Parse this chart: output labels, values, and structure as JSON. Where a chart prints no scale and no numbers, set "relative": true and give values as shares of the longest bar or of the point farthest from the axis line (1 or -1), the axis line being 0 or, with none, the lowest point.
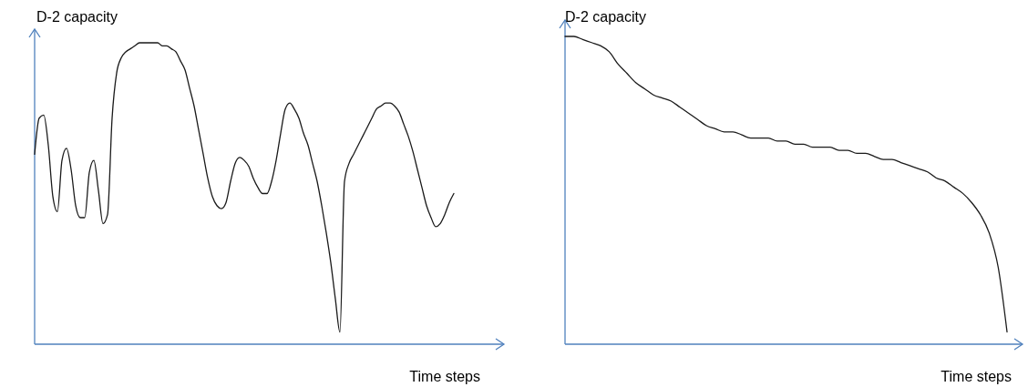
{
  "chart_data": [
    {
      "type": "line",
      "ylabel": "D-2 capacity",
      "xlabel": "Time steps",
      "relative": true,
      "categories": [
        null,
        null,
        null,
        null,
        null,
        null,
        null,
        null,
        null,
        null,
        null,
        null,
        null,
        null,
        null,
        null,
        null,
        null,
        null,
        null,
        null,
        null,
        null,
        null,
        null,
        null,
        null,
        null,
        null,
        null,
        null,
        null,
        null,
        null,
        null,
        null,
        null,
        null,
        null,
        null,
        null,
        null,
        null,
        null,
        null,
        null,
        null,
        null,
        null,
        null,
        null,
        null,
        null,
        null,
        null,
        null,
        null,
        null,
        null,
        null,
        null,
        null,
        null,
        null,
        null,
        null,
        null,
        null,
        null,
        null,
        null,
        null,
        null,
        null,
        null,
        null,
        null,
        null,
        null,
        null,
        null,
        null,
        null,
        null,
        null,
        null,
        null,
        null,
        null,
        null,
        null,
        null,
        null
      ],
      "series": [
        {
          "color": "#1a1a1a",
          "values": [
            0.63,
            0.75,
            0.76,
            0.66,
            0.49,
            0.44,
            0.61,
            0.65,
            0.58,
            0.46,
            0.42,
            0.42,
            0.57,
            0.61,
            0.51,
            0.4,
            0.43,
            0.75,
            0.9,
            0.95,
            0.97,
            0.98,
            0.99,
            1.0,
            1.0,
            1.0,
            1.0,
            1.0,
            0.99,
            0.99,
            0.98,
            0.97,
            0.94,
            0.91,
            0.85,
            0.79,
            0.71,
            0.63,
            0.55,
            0.49,
            0.46,
            0.45,
            0.47,
            0.54,
            0.6,
            0.62,
            0.61,
            0.59,
            0.55,
            0.52,
            0.5,
            0.5,
            0.54,
            0.61,
            0.7,
            0.78,
            0.8,
            0.78,
            0.75,
            0.7,
            0.66,
            0.6,
            0.54,
            0.46,
            0.37,
            0.27,
            0.15,
            0.04,
            0.54,
            0.6,
            0.63,
            0.66,
            0.69,
            0.72,
            0.75,
            0.78,
            0.79,
            0.8,
            0.8,
            0.79,
            0.77,
            0.73,
            0.69,
            0.64,
            0.58,
            0.52,
            0.46,
            0.42,
            0.39,
            0.4,
            0.43,
            0.47,
            0.5
          ]
        }
      ]
    },
    {
      "type": "line",
      "ylabel": "D-2 capacity",
      "xlabel": "Time steps",
      "relative": true,
      "categories": [
        null,
        null,
        null,
        null,
        null,
        null,
        null,
        null,
        null,
        null,
        null,
        null,
        null,
        null,
        null,
        null,
        null,
        null,
        null,
        null,
        null,
        null,
        null,
        null,
        null,
        null,
        null,
        null,
        null,
        null,
        null,
        null,
        null,
        null,
        null,
        null,
        null,
        null,
        null,
        null,
        null,
        null,
        null,
        null,
        null,
        null,
        null,
        null,
        null,
        null,
        null
      ],
      "series": [
        {
          "color": "#1a1a1a",
          "values": [
            1.0,
            1.0,
            0.99,
            0.98,
            0.97,
            0.95,
            0.91,
            0.88,
            0.85,
            0.83,
            0.81,
            0.8,
            0.79,
            0.77,
            0.75,
            0.73,
            0.71,
            0.7,
            0.69,
            0.69,
            0.68,
            0.67,
            0.67,
            0.67,
            0.66,
            0.66,
            0.65,
            0.65,
            0.64,
            0.64,
            0.64,
            0.63,
            0.63,
            0.62,
            0.62,
            0.61,
            0.6,
            0.6,
            0.59,
            0.58,
            0.57,
            0.56,
            0.54,
            0.53,
            0.51,
            0.49,
            0.46,
            0.42,
            0.36,
            0.25,
            0.04
          ]
        }
      ]
    }
  ]
}
